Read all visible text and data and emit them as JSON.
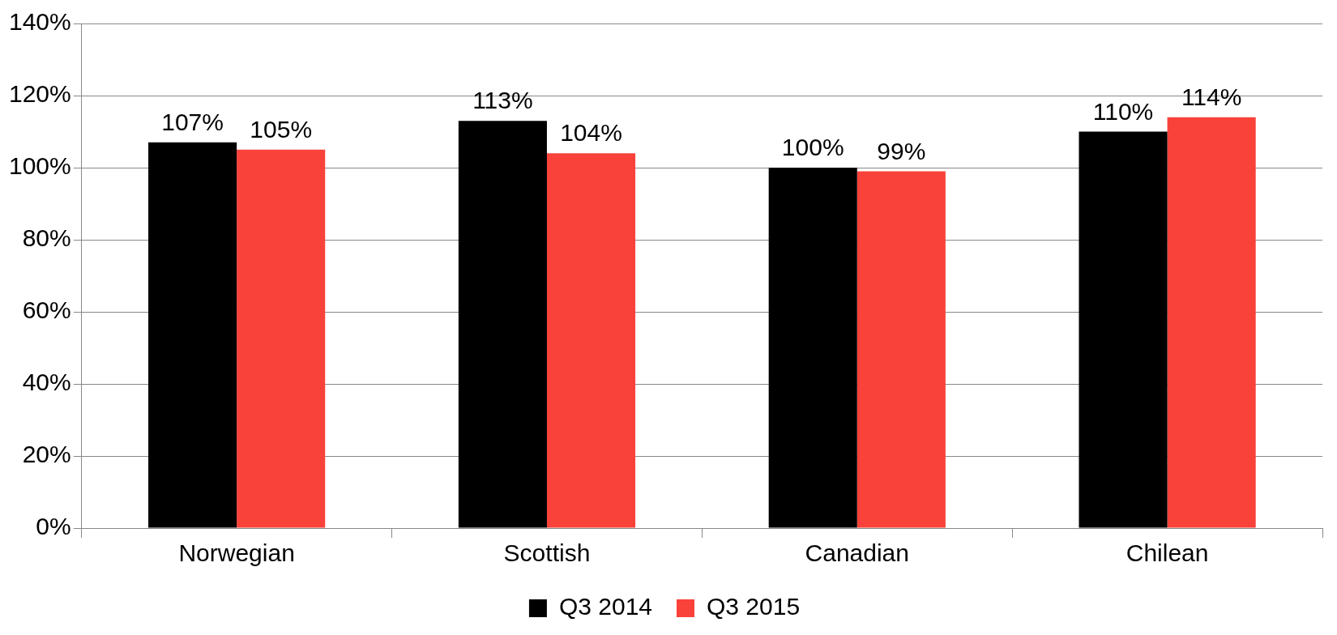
{
  "chart_data": {
    "type": "bar",
    "categories": [
      "Norwegian",
      "Scottish",
      "Canadian",
      "Chilean"
    ],
    "series": [
      {
        "name": "Q3 2014",
        "color": "#000000",
        "values": [
          107,
          113,
          100,
          110
        ],
        "value_labels": [
          "107%",
          "113%",
          "100%",
          "110%"
        ]
      },
      {
        "name": "Q3 2015",
        "color": "#f9423a",
        "values": [
          105,
          104,
          99,
          114
        ],
        "value_labels": [
          "105%",
          "104%",
          "99%",
          "114%"
        ]
      }
    ],
    "ylim": [
      0,
      140
    ],
    "yticks": [
      {
        "value": 0,
        "label": "0%"
      },
      {
        "value": 20,
        "label": "20%"
      },
      {
        "value": 40,
        "label": "40%"
      },
      {
        "value": 60,
        "label": "60%"
      },
      {
        "value": 80,
        "label": "80%"
      },
      {
        "value": 100,
        "label": "100%"
      },
      {
        "value": 120,
        "label": "120%"
      },
      {
        "value": 140,
        "label": "140%"
      }
    ],
    "grid": "y",
    "legend": "bottom"
  }
}
